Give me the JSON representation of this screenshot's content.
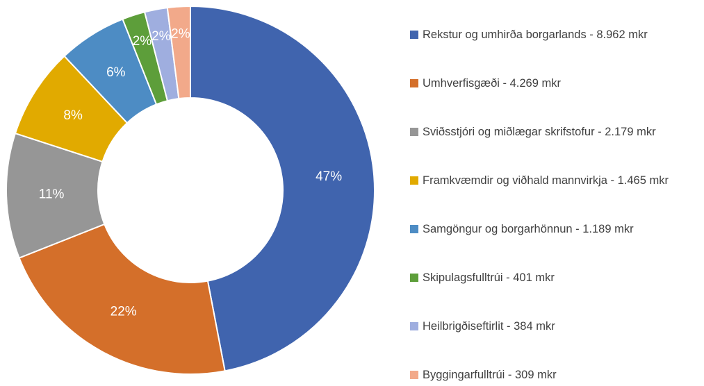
{
  "chart_data": {
    "type": "donut",
    "categories": [
      "Rekstur og umhirða borgarlands - 8.962 mkr",
      "Umhverfisgæði - 4.269 mkr",
      "Sviðsstjóri og miðlægar skrifstofur - 2.179 mkr",
      "Framkvæmdir og viðhald mannvirkja - 1.465 mkr",
      "Samgöngur og borgarhönnun - 1.189 mkr",
      "Skipulagsfulltrúi - 401 mkr",
      "Heilbrigðiseftirlit - 384 mkr",
      "Byggingarfulltrúi - 309 mkr"
    ],
    "values": [
      47,
      22,
      11,
      8,
      6,
      2,
      2,
      2
    ],
    "value_labels": [
      "47%",
      "22%",
      "11%",
      "8%",
      "6%",
      "2%",
      "2%",
      "2%"
    ],
    "colors": [
      "#4064ae",
      "#d46f2a",
      "#969696",
      "#e1aa00",
      "#4d8cc4",
      "#5d9e3a",
      "#9faedf",
      "#f2a98a"
    ],
    "legend": "right"
  }
}
